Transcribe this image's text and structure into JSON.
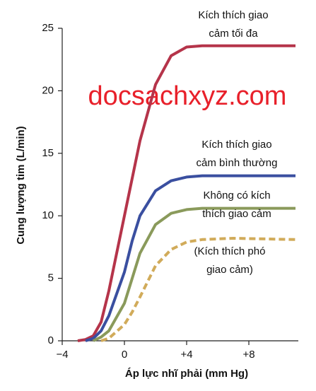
{
  "chart_data": {
    "type": "line",
    "x_label": "Áp lực nhĩ phải (mm Hg)",
    "y_label": "Cung lượng tim (L/min)",
    "watermark": "docsachxyz.com",
    "x": [
      -3,
      -2.5,
      -2,
      -1.5,
      -1,
      0,
      0.5,
      1,
      2,
      3,
      4,
      5,
      7,
      11
    ],
    "series": [
      {
        "label": [
          "Kích thích giao",
          "cảm tối đa"
        ],
        "color": "#b5344a",
        "dashed": false,
        "values": [
          0,
          0.1,
          0.4,
          1.5,
          4,
          10,
          13,
          16,
          20.5,
          22.8,
          23.5,
          23.6,
          23.6,
          23.6
        ]
      },
      {
        "label": [
          "Kích thích giao",
          "cảm bình thường"
        ],
        "color": "#3a4fa0",
        "dashed": false,
        "values": [
          null,
          0,
          0.2,
          0.8,
          2,
          5.5,
          8,
          10,
          12,
          12.8,
          13.1,
          13.2,
          13.2,
          13.2
        ]
      },
      {
        "label": [
          "Không có kích",
          "thích giao cảm"
        ],
        "color": "#8a9a5b",
        "dashed": false,
        "values": [
          null,
          null,
          0,
          0.3,
          0.8,
          3,
          5,
          7,
          9.3,
          10.2,
          10.5,
          10.6,
          10.6,
          10.6
        ]
      },
      {
        "label": [
          "(Kích thích phó",
          "giao cảm)"
        ],
        "color": "#d1ab5a",
        "dashed": true,
        "values": [
          null,
          null,
          null,
          0,
          0.2,
          1.3,
          2.3,
          3.5,
          6,
          7.3,
          7.9,
          8.1,
          8.2,
          8.1
        ]
      }
    ],
    "xlim": [
      -4,
      11.1
    ],
    "ylim": [
      0,
      25
    ],
    "xticks": [
      {
        "value": -4,
        "label": "−4"
      },
      0,
      {
        "value": 4,
        "label": "+4"
      },
      {
        "value": 8,
        "label": "+8"
      }
    ],
    "yticks": [
      0,
      5,
      10,
      15,
      20,
      25
    ]
  }
}
